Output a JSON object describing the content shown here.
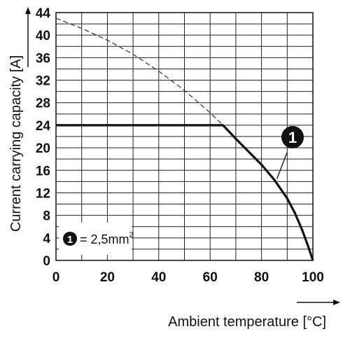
{
  "chart_data": {
    "type": "line",
    "xlabel": "Ambient temperature [°C]",
    "ylabel": "Current carrying capacity [A]",
    "xlim": [
      0,
      100
    ],
    "ylim": [
      0,
      44
    ],
    "x_ticks": [
      "0",
      "20",
      "40",
      "60",
      "80",
      "100"
    ],
    "y_ticks": [
      "0",
      "4",
      "8",
      "12",
      "16",
      "20",
      "24",
      "28",
      "32",
      "36",
      "40",
      "44"
    ],
    "grid": true,
    "series": [
      {
        "style": "solid",
        "x": [
          0,
          65,
          70,
          75,
          80,
          85,
          90,
          93,
          96,
          98,
          100
        ],
        "y": [
          24,
          24,
          21.6,
          19.3,
          17.0,
          14.3,
          11.0,
          8.4,
          5.2,
          2.7,
          0
        ]
      },
      {
        "style": "dashed",
        "x": [
          0,
          10,
          20,
          30,
          40,
          50,
          60,
          65
        ],
        "y": [
          43,
          41.2,
          39.1,
          36.6,
          33.6,
          30.2,
          26.2,
          24
        ]
      }
    ],
    "annotations": [
      {
        "badge": "1",
        "target_x": 86,
        "target_y": 14.5
      }
    ],
    "legend": {
      "badge": "1",
      "text": "= 2,5mm",
      "superscript": "2",
      "placement": "bottom-left"
    }
  }
}
